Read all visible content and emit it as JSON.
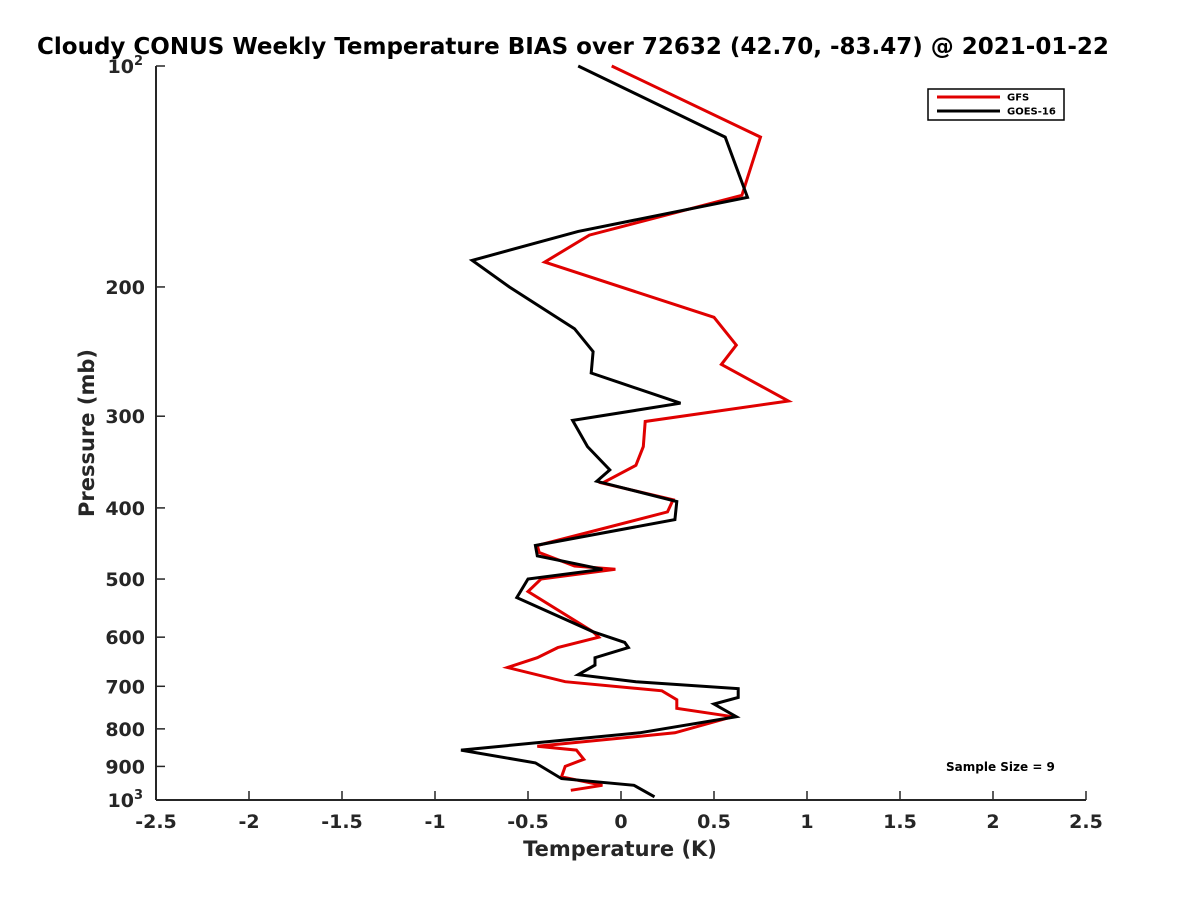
{
  "chart_data": {
    "type": "line",
    "title": "Cloudy CONUS Weekly Temperature BIAS over 72632 (42.70, -83.47) @ 2021-01-22",
    "xlabel": "Temperature (K)",
    "ylabel": "Pressure (mb)",
    "xlim": [
      -2.5,
      2.5
    ],
    "ylim": [
      100,
      1000
    ],
    "y_scale": "log",
    "y_reversed": true,
    "x_ticks": [
      "-2.5",
      "-2",
      "-1.5",
      "-1",
      "-0.5",
      "0",
      "0.5",
      "1",
      "1.5",
      "2",
      "2.5"
    ],
    "x_tick_values": [
      -2.5,
      -2,
      -1.5,
      -1,
      -0.5,
      0,
      0.5,
      1,
      1.5,
      2,
      2.5
    ],
    "y_ticks": [
      {
        "value": 100,
        "base": "10",
        "exp": "2"
      },
      {
        "value": 200,
        "label": "200"
      },
      {
        "value": 300,
        "label": "300"
      },
      {
        "value": 400,
        "label": "400"
      },
      {
        "value": 500,
        "label": "500"
      },
      {
        "value": 600,
        "label": "600"
      },
      {
        "value": 700,
        "label": "700"
      },
      {
        "value": 800,
        "label": "800"
      },
      {
        "value": 900,
        "label": "900"
      },
      {
        "value": 1000,
        "base": "10",
        "exp": "3"
      }
    ],
    "grid": false,
    "legend_position": "top-right",
    "series": [
      {
        "name": "GFS",
        "color": "#e00000",
        "points": [
          [
            -0.05,
            100
          ],
          [
            0.75,
            125
          ],
          [
            0.65,
            150
          ],
          [
            -0.17,
            170
          ],
          [
            -0.41,
            185
          ],
          [
            0.5,
            220
          ],
          [
            0.62,
            240
          ],
          [
            0.54,
            255
          ],
          [
            0.9,
            286
          ],
          [
            0.13,
            305
          ],
          [
            0.12,
            330
          ],
          [
            0.08,
            350
          ],
          [
            -0.1,
            370
          ],
          [
            0.28,
            390
          ],
          [
            0.25,
            405
          ],
          [
            -0.45,
            450
          ],
          [
            -0.44,
            460
          ],
          [
            -0.25,
            480
          ],
          [
            -0.03,
            485
          ],
          [
            -0.43,
            500
          ],
          [
            -0.5,
            520
          ],
          [
            -0.15,
            590
          ],
          [
            -0.12,
            600
          ],
          [
            -0.34,
            620
          ],
          [
            -0.45,
            640
          ],
          [
            -0.61,
            660
          ],
          [
            -0.3,
            690
          ],
          [
            0.22,
            710
          ],
          [
            0.3,
            730
          ],
          [
            0.3,
            750
          ],
          [
            0.6,
            770
          ],
          [
            0.29,
            810
          ],
          [
            -0.45,
            845
          ],
          [
            -0.24,
            855
          ],
          [
            -0.2,
            880
          ],
          [
            -0.3,
            900
          ],
          [
            -0.32,
            930
          ],
          [
            -0.1,
            955
          ],
          [
            -0.27,
            970
          ]
        ]
      },
      {
        "name": "GOES-16",
        "color": "#000000",
        "points": [
          [
            -0.23,
            100
          ],
          [
            0.56,
            125
          ],
          [
            0.68,
            151
          ],
          [
            -0.23,
            168
          ],
          [
            -0.8,
            184
          ],
          [
            -0.6,
            200
          ],
          [
            -0.25,
            228
          ],
          [
            -0.15,
            245
          ],
          [
            -0.16,
            262
          ],
          [
            0.32,
            288
          ],
          [
            -0.26,
            304
          ],
          [
            -0.18,
            330
          ],
          [
            -0.06,
            355
          ],
          [
            -0.13,
            368
          ],
          [
            0.3,
            392
          ],
          [
            0.29,
            415
          ],
          [
            -0.46,
            450
          ],
          [
            -0.45,
            465
          ],
          [
            -0.1,
            485
          ],
          [
            -0.5,
            500
          ],
          [
            -0.56,
            530
          ],
          [
            -0.15,
            590
          ],
          [
            0.02,
            610
          ],
          [
            0.04,
            620
          ],
          [
            -0.14,
            640
          ],
          [
            -0.14,
            655
          ],
          [
            -0.23,
            675
          ],
          [
            0.08,
            690
          ],
          [
            0.63,
            705
          ],
          [
            0.63,
            725
          ],
          [
            0.5,
            740
          ],
          [
            0.62,
            770
          ],
          [
            0.1,
            810
          ],
          [
            -0.86,
            855
          ],
          [
            -0.46,
            890
          ],
          [
            -0.32,
            935
          ],
          [
            0.07,
            955
          ],
          [
            0.18,
            990
          ]
        ]
      }
    ],
    "annotations": [
      "Sample Size = 9"
    ]
  }
}
